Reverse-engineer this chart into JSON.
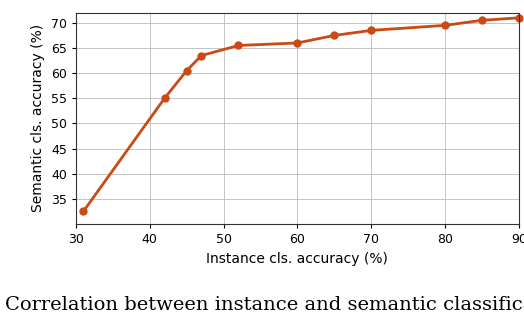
{
  "x": [
    31,
    42,
    45,
    47,
    52,
    60,
    65,
    70,
    80,
    85,
    90
  ],
  "y": [
    32.5,
    55.0,
    60.5,
    63.5,
    65.5,
    66.0,
    67.5,
    68.5,
    69.5,
    70.5,
    71.0
  ],
  "line_color": "#c94a15",
  "marker": "o",
  "marker_size": 5,
  "linewidth": 2.0,
  "xlabel": "Instance cls. accuracy (%)",
  "ylabel": "Semantic cls. accuracy (%)",
  "xlim": [
    30,
    90
  ],
  "ylim": [
    30,
    72
  ],
  "xticks": [
    30,
    40,
    50,
    60,
    70,
    80,
    90
  ],
  "yticks": [
    35,
    40,
    45,
    50,
    55,
    60,
    65,
    70
  ],
  "caption": "Correlation between instance and semantic classificat",
  "grid": true,
  "background_color": "#ffffff",
  "tick_fontsize": 9,
  "label_fontsize": 10,
  "caption_fontsize": 14
}
